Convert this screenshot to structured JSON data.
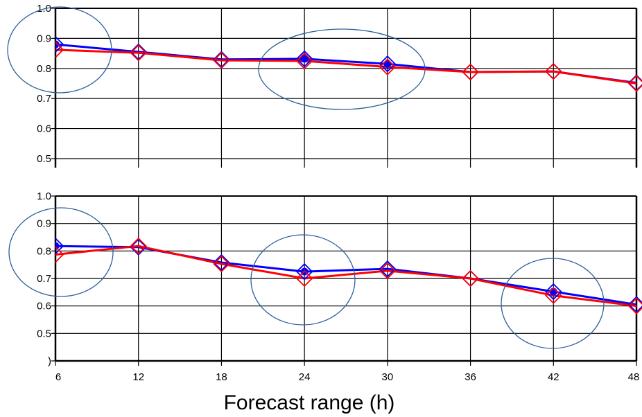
{
  "chart_data": [
    {
      "type": "line",
      "x": [
        6,
        12,
        18,
        24,
        30,
        36,
        42,
        48
      ],
      "series": [
        {
          "values": [
            0.88,
            0.855,
            0.83,
            0.832,
            0.815,
            0.788,
            0.79,
            0.752
          ],
          "color": "#0000ff",
          "marker_fill": [
            true,
            false,
            false,
            true,
            true,
            false,
            false,
            false
          ]
        },
        {
          "values": [
            0.862,
            0.852,
            0.827,
            0.825,
            0.805,
            0.788,
            0.79,
            0.75
          ],
          "color": "#ff0000"
        }
      ],
      "xlim": [
        6,
        48
      ],
      "ylim": [
        0.47,
        1.0
      ],
      "yticks": [
        0.5,
        0.6,
        0.7,
        0.8,
        0.9,
        1.0
      ],
      "ytick_labels": [
        "0.5",
        "0.6",
        "0.7",
        "0.8",
        "0.9",
        "1.0"
      ],
      "grid": true,
      "highlight_ellipses_at_x": [
        6,
        27
      ]
    },
    {
      "type": "line",
      "x": [
        6,
        12,
        18,
        24,
        30,
        36,
        42,
        48
      ],
      "series": [
        {
          "values": [
            0.818,
            0.814,
            0.758,
            0.725,
            0.735,
            0.7,
            0.652,
            0.605
          ],
          "color": "#0000ff",
          "marker_fill": [
            true,
            false,
            false,
            true,
            false,
            false,
            true,
            false
          ]
        },
        {
          "values": [
            0.787,
            0.818,
            0.753,
            0.7,
            0.728,
            0.7,
            0.638,
            0.6
          ],
          "color": "#ff0000"
        }
      ],
      "xlim": [
        6,
        48
      ],
      "ylim": [
        0.4,
        1.0
      ],
      "yticks": [
        0.4,
        0.5,
        0.6,
        0.7,
        0.8,
        0.9,
        1.0
      ],
      "ytick_labels": [
        ")",
        "0.5",
        "0.6",
        "0.7",
        "0.8",
        "0.9",
        "1.0"
      ],
      "xticks": [
        6,
        12,
        18,
        24,
        30,
        36,
        42,
        48
      ],
      "xtick_labels": [
        "6",
        "12",
        "18",
        "24",
        "30",
        "36",
        "42",
        "48"
      ],
      "xlabel": "Forecast range (h)",
      "grid": true,
      "highlight_ellipses_at_x": [
        6,
        24,
        42
      ]
    }
  ]
}
